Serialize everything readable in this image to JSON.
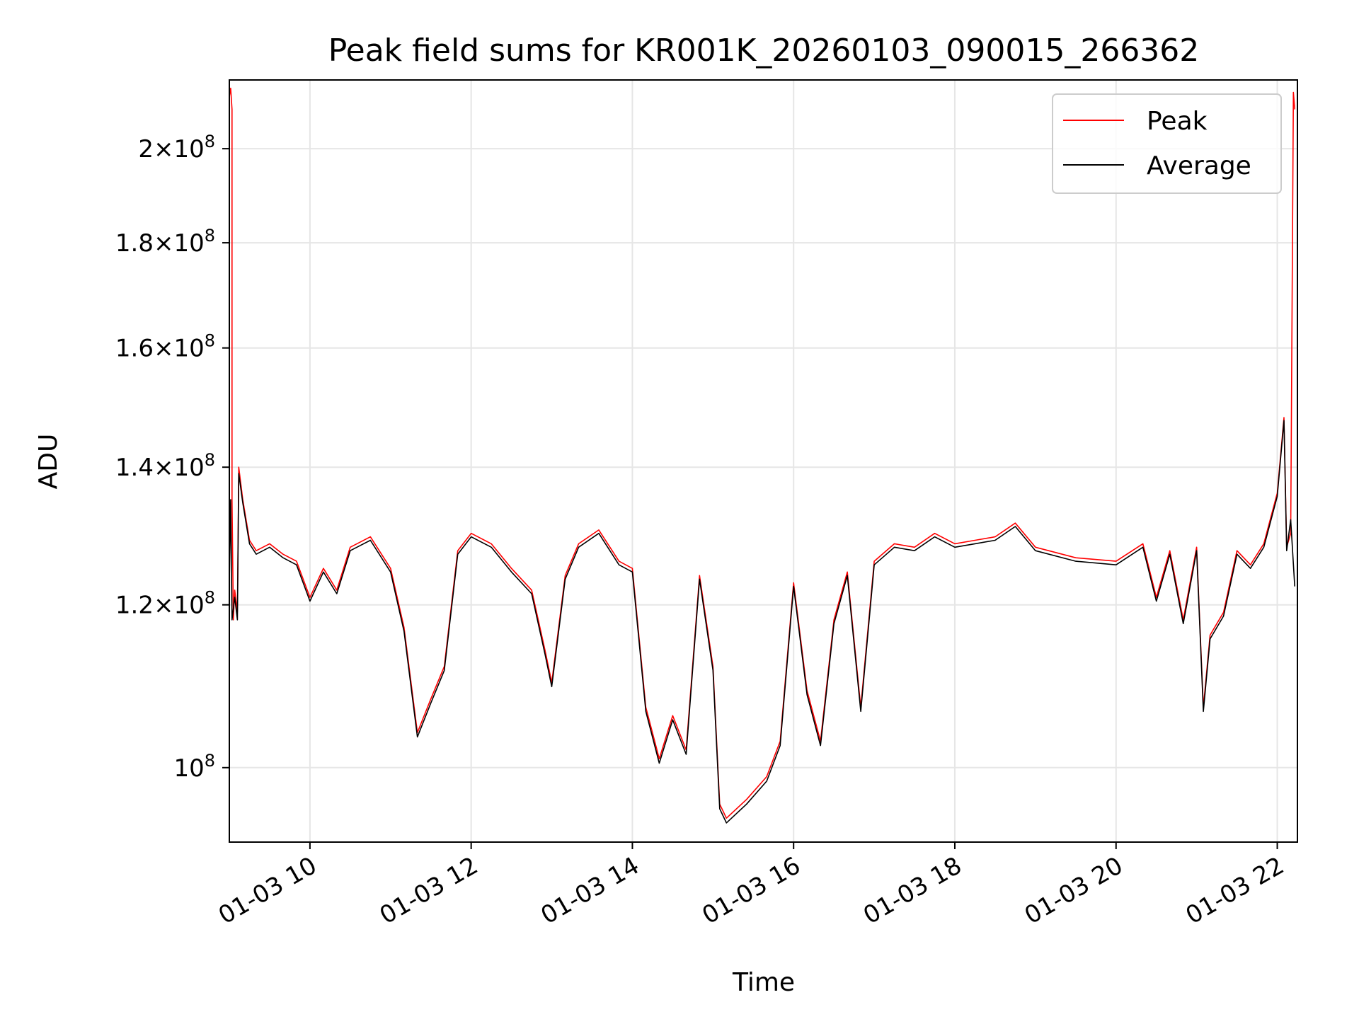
{
  "chart_data": {
    "type": "line",
    "title": "Peak field sums for KR001K_20260103_090015_266362",
    "xlabel": "Time",
    "ylabel": "ADU",
    "x_axis": {
      "type": "time",
      "range": [
        "2026-01-03 09:00",
        "2026-01-03 22:15"
      ],
      "ticks": [
        "2026-01-03 10:00",
        "2026-01-03 12:00",
        "2026-01-03 14:00",
        "2026-01-03 16:00",
        "2026-01-03 18:00",
        "2026-01-03 20:00",
        "2026-01-03 22:00"
      ],
      "tick_labels": [
        "01-03 10",
        "01-03 12",
        "01-03 14",
        "01-03 16",
        "01-03 18",
        "01-03 20",
        "01-03 22"
      ]
    },
    "y_axis": {
      "scale": "log",
      "ylim": [
        92000000,
        216000000
      ],
      "ticks": [
        100000000,
        120000000,
        140000000,
        160000000,
        180000000,
        200000000
      ],
      "tick_labels": [
        {
          "mantissa": "",
          "exponent": "8"
        },
        {
          "mantissa": "1.2",
          "exponent": "8"
        },
        {
          "mantissa": "1.4",
          "exponent": "8"
        },
        {
          "mantissa": "1.6",
          "exponent": "8"
        },
        {
          "mantissa": "1.8",
          "exponent": "8"
        },
        {
          "mantissa": "2",
          "exponent": "8"
        }
      ]
    },
    "grid": true,
    "legend_position": "top-right",
    "series": [
      {
        "name": "Peak",
        "color": "#ff0000",
        "points": [
          [
            "2026-01-03 09:00",
            212000000
          ],
          [
            "2026-01-03 09:01",
            214000000
          ],
          [
            "2026-01-03 09:02",
            209000000
          ],
          [
            "2026-01-03 09:02",
            135000000
          ],
          [
            "2026-01-03 09:03",
            118000000
          ],
          [
            "2026-01-03 09:04",
            122000000
          ],
          [
            "2026-01-03 09:06",
            119000000
          ],
          [
            "2026-01-03 09:07",
            140000000
          ],
          [
            "2026-01-03 09:10",
            135000000
          ],
          [
            "2026-01-03 09:15",
            129000000
          ],
          [
            "2026-01-03 09:20",
            127500000
          ],
          [
            "2026-01-03 09:30",
            128500000
          ],
          [
            "2026-01-03 09:40",
            127000000
          ],
          [
            "2026-01-03 09:50",
            126000000
          ],
          [
            "2026-01-03 10:00",
            121000000
          ],
          [
            "2026-01-03 10:10",
            125000000
          ],
          [
            "2026-01-03 10:20",
            122000000
          ],
          [
            "2026-01-03 10:30",
            128000000
          ],
          [
            "2026-01-03 10:45",
            129500000
          ],
          [
            "2026-01-03 11:00",
            125000000
          ],
          [
            "2026-01-03 11:10",
            117000000
          ],
          [
            "2026-01-03 11:20",
            104000000
          ],
          [
            "2026-01-03 11:30",
            108000000
          ],
          [
            "2026-01-03 11:40",
            112000000
          ],
          [
            "2026-01-03 11:50",
            127500000
          ],
          [
            "2026-01-03 12:00",
            130000000
          ],
          [
            "2026-01-03 12:15",
            128500000
          ],
          [
            "2026-01-03 12:30",
            125000000
          ],
          [
            "2026-01-03 12:45",
            122000000
          ],
          [
            "2026-01-03 12:55",
            114000000
          ],
          [
            "2026-01-03 13:00",
            110000000
          ],
          [
            "2026-01-03 13:10",
            124000000
          ],
          [
            "2026-01-03 13:20",
            128500000
          ],
          [
            "2026-01-03 13:35",
            130500000
          ],
          [
            "2026-01-03 13:50",
            126000000
          ],
          [
            "2026-01-03 14:00",
            125000000
          ],
          [
            "2026-01-03 14:10",
            107000000
          ],
          [
            "2026-01-03 14:20",
            101000000
          ],
          [
            "2026-01-03 14:30",
            106000000
          ],
          [
            "2026-01-03 14:40",
            102000000
          ],
          [
            "2026-01-03 14:50",
            124000000
          ],
          [
            "2026-01-03 15:00",
            112000000
          ],
          [
            "2026-01-03 15:05",
            96000000
          ],
          [
            "2026-01-03 15:10",
            94500000
          ],
          [
            "2026-01-03 15:25",
            96500000
          ],
          [
            "2026-01-03 15:40",
            99000000
          ],
          [
            "2026-01-03 15:50",
            103000000
          ],
          [
            "2026-01-03 16:00",
            123000000
          ],
          [
            "2026-01-03 16:10",
            109000000
          ],
          [
            "2026-01-03 16:20",
            103000000
          ],
          [
            "2026-01-03 16:30",
            118000000
          ],
          [
            "2026-01-03 16:40",
            124500000
          ],
          [
            "2026-01-03 16:50",
            107000000
          ],
          [
            "2026-01-03 17:00",
            126000000
          ],
          [
            "2026-01-03 17:15",
            128500000
          ],
          [
            "2026-01-03 17:30",
            128000000
          ],
          [
            "2026-01-03 17:45",
            130000000
          ],
          [
            "2026-01-03 18:00",
            128500000
          ],
          [
            "2026-01-03 18:15",
            129000000
          ],
          [
            "2026-01-03 18:30",
            129500000
          ],
          [
            "2026-01-03 18:45",
            131500000
          ],
          [
            "2026-01-03 19:00",
            128000000
          ],
          [
            "2026-01-03 19:30",
            126500000
          ],
          [
            "2026-01-03 20:00",
            126000000
          ],
          [
            "2026-01-03 20:20",
            128500000
          ],
          [
            "2026-01-03 20:30",
            121000000
          ],
          [
            "2026-01-03 20:40",
            127500000
          ],
          [
            "2026-01-03 20:50",
            118000000
          ],
          [
            "2026-01-03 21:00",
            128000000
          ],
          [
            "2026-01-03 21:05",
            107000000
          ],
          [
            "2026-01-03 21:10",
            116000000
          ],
          [
            "2026-01-03 21:20",
            119000000
          ],
          [
            "2026-01-03 21:30",
            127500000
          ],
          [
            "2026-01-03 21:40",
            125500000
          ],
          [
            "2026-01-03 21:50",
            128500000
          ],
          [
            "2026-01-03 22:00",
            136000000
          ],
          [
            "2026-01-03 22:05",
            148000000
          ],
          [
            "2026-01-03 22:07",
            128000000
          ],
          [
            "2026-01-03 22:10",
            130000000
          ],
          [
            "2026-01-03 22:12",
            213000000
          ],
          [
            "2026-01-03 22:13",
            209000000
          ]
        ]
      },
      {
        "name": "Average",
        "color": "#000000",
        "points": [
          [
            "2026-01-03 09:00",
            123000000
          ],
          [
            "2026-01-03 09:01",
            135000000
          ],
          [
            "2026-01-03 09:02",
            118000000
          ],
          [
            "2026-01-03 09:04",
            121000000
          ],
          [
            "2026-01-03 09:06",
            118000000
          ],
          [
            "2026-01-03 09:07",
            139000000
          ],
          [
            "2026-01-03 09:10",
            134500000
          ],
          [
            "2026-01-03 09:15",
            128500000
          ],
          [
            "2026-01-03 09:20",
            127000000
          ],
          [
            "2026-01-03 09:30",
            128000000
          ],
          [
            "2026-01-03 09:40",
            126500000
          ],
          [
            "2026-01-03 09:50",
            125500000
          ],
          [
            "2026-01-03 10:00",
            120500000
          ],
          [
            "2026-01-03 10:10",
            124500000
          ],
          [
            "2026-01-03 10:20",
            121500000
          ],
          [
            "2026-01-03 10:30",
            127500000
          ],
          [
            "2026-01-03 10:45",
            129000000
          ],
          [
            "2026-01-03 11:00",
            124500000
          ],
          [
            "2026-01-03 11:10",
            116500000
          ],
          [
            "2026-01-03 11:20",
            103500000
          ],
          [
            "2026-01-03 11:30",
            107500000
          ],
          [
            "2026-01-03 11:40",
            111500000
          ],
          [
            "2026-01-03 11:50",
            127000000
          ],
          [
            "2026-01-03 12:00",
            129500000
          ],
          [
            "2026-01-03 12:15",
            128000000
          ],
          [
            "2026-01-03 12:30",
            124500000
          ],
          [
            "2026-01-03 12:45",
            121500000
          ],
          [
            "2026-01-03 12:55",
            113500000
          ],
          [
            "2026-01-03 13:00",
            109500000
          ],
          [
            "2026-01-03 13:10",
            123500000
          ],
          [
            "2026-01-03 13:20",
            128000000
          ],
          [
            "2026-01-03 13:35",
            130000000
          ],
          [
            "2026-01-03 13:50",
            125500000
          ],
          [
            "2026-01-03 14:00",
            124500000
          ],
          [
            "2026-01-03 14:10",
            106500000
          ],
          [
            "2026-01-03 14:20",
            100500000
          ],
          [
            "2026-01-03 14:30",
            105500000
          ],
          [
            "2026-01-03 14:40",
            101500000
          ],
          [
            "2026-01-03 14:50",
            123500000
          ],
          [
            "2026-01-03 15:00",
            111500000
          ],
          [
            "2026-01-03 15:05",
            95500000
          ],
          [
            "2026-01-03 15:10",
            94000000
          ],
          [
            "2026-01-03 15:25",
            96000000
          ],
          [
            "2026-01-03 15:40",
            98500000
          ],
          [
            "2026-01-03 15:50",
            102500000
          ],
          [
            "2026-01-03 16:00",
            122500000
          ],
          [
            "2026-01-03 16:10",
            108500000
          ],
          [
            "2026-01-03 16:20",
            102500000
          ],
          [
            "2026-01-03 16:30",
            117500000
          ],
          [
            "2026-01-03 16:40",
            124000000
          ],
          [
            "2026-01-03 16:50",
            106500000
          ],
          [
            "2026-01-03 17:00",
            125500000
          ],
          [
            "2026-01-03 17:15",
            128000000
          ],
          [
            "2026-01-03 17:30",
            127500000
          ],
          [
            "2026-01-03 17:45",
            129500000
          ],
          [
            "2026-01-03 18:00",
            128000000
          ],
          [
            "2026-01-03 18:15",
            128500000
          ],
          [
            "2026-01-03 18:30",
            129000000
          ],
          [
            "2026-01-03 18:45",
            131000000
          ],
          [
            "2026-01-03 19:00",
            127500000
          ],
          [
            "2026-01-03 19:30",
            126000000
          ],
          [
            "2026-01-03 20:00",
            125500000
          ],
          [
            "2026-01-03 20:20",
            128000000
          ],
          [
            "2026-01-03 20:30",
            120500000
          ],
          [
            "2026-01-03 20:40",
            127000000
          ],
          [
            "2026-01-03 20:50",
            117500000
          ],
          [
            "2026-01-03 21:00",
            127500000
          ],
          [
            "2026-01-03 21:05",
            106500000
          ],
          [
            "2026-01-03 21:10",
            115500000
          ],
          [
            "2026-01-03 21:20",
            118500000
          ],
          [
            "2026-01-03 21:30",
            127000000
          ],
          [
            "2026-01-03 21:40",
            125000000
          ],
          [
            "2026-01-03 21:50",
            128000000
          ],
          [
            "2026-01-03 22:00",
            135500000
          ],
          [
            "2026-01-03 22:05",
            147500000
          ],
          [
            "2026-01-03 22:07",
            127500000
          ],
          [
            "2026-01-03 22:10",
            132000000
          ],
          [
            "2026-01-03 22:13",
            122500000
          ]
        ]
      }
    ]
  }
}
